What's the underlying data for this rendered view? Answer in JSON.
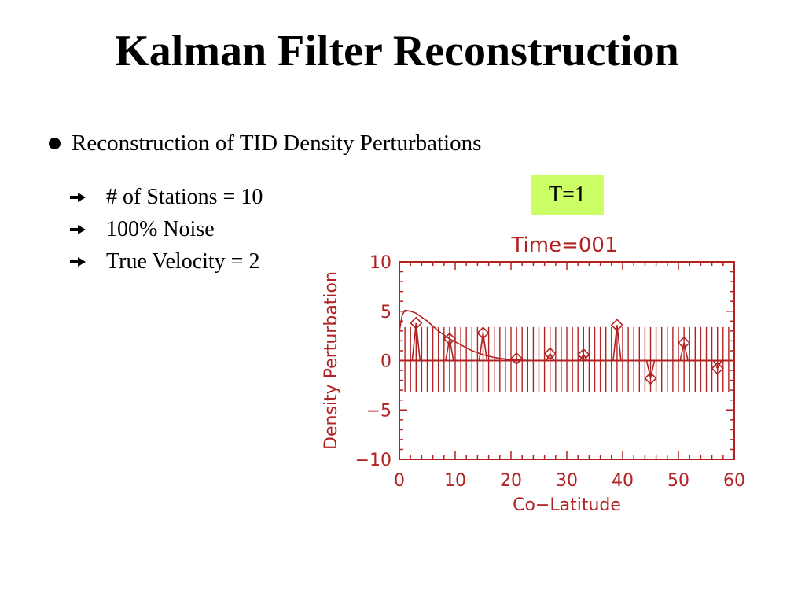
{
  "slide": {
    "title": "Kalman Filter Reconstruction",
    "main_bullet": "Reconstruction of TID Density Perturbations",
    "sub_bullets": [
      "# of Stations = 10",
      "100% Noise",
      "True Velocity = 2"
    ],
    "badge": "T=1"
  },
  "colors": {
    "plot": "#b22222",
    "badge_bg": "#ccff66"
  },
  "chart_data": {
    "type": "line",
    "title": "Time=001",
    "xlabel": "Co−Latitude",
    "ylabel": "Density Perturbation",
    "xlim": [
      0,
      60
    ],
    "ylim": [
      -10,
      10
    ],
    "x_ticks": [
      0,
      10,
      20,
      30,
      40,
      50,
      60
    ],
    "y_ticks": [
      10,
      5,
      0,
      -5,
      -10
    ],
    "x_tick_labels": [
      "0",
      "10",
      "20",
      "30",
      "40",
      "50",
      "60"
    ],
    "y_tick_labels": [
      "10",
      "5",
      "0",
      "−5",
      "−10"
    ],
    "curve": {
      "x": [
        0,
        0.5,
        1,
        2,
        3,
        4,
        5,
        6,
        7,
        8,
        9,
        10,
        11,
        12,
        13,
        14,
        15,
        16,
        17,
        18,
        19,
        20,
        21,
        22,
        23,
        24,
        25,
        30,
        35,
        40,
        45,
        50,
        55,
        60
      ],
      "y": [
        3.0,
        4.6,
        5.1,
        5.0,
        4.8,
        4.4,
        4.0,
        3.5,
        3.0,
        2.6,
        2.2,
        1.9,
        1.6,
        1.3,
        1.0,
        0.8,
        0.6,
        0.45,
        0.32,
        0.22,
        0.15,
        0.1,
        0.06,
        0.04,
        0.02,
        0.01,
        0.0,
        0.0,
        0.0,
        0.0,
        0.0,
        0.0,
        0.0,
        0.0
      ]
    },
    "stations": {
      "x": [
        3,
        9,
        15,
        21,
        27,
        33,
        39,
        45,
        51,
        57
      ],
      "y": [
        3.8,
        2.2,
        2.8,
        0.2,
        0.7,
        0.6,
        3.6,
        -1.8,
        1.8,
        -0.8
      ]
    },
    "vline_band": [
      -3.2,
      3.4
    ],
    "vline_x": [
      0.0,
      1.0,
      2.0,
      3.0,
      4.0,
      5.0,
      6.0,
      7.0,
      8.0,
      9.0,
      10.0,
      11.0,
      12.0,
      13.0,
      14.0,
      15.0,
      16.0,
      17.0,
      18.0,
      19.0,
      20.0,
      21.0,
      22.0,
      23.0,
      24.0,
      25.0,
      26.0,
      27.0,
      28.0,
      29.0,
      30.0,
      31.0,
      32.0,
      33.0,
      34.0,
      35.0,
      36.0,
      37.0,
      38.0,
      39.0,
      40.0,
      41.0,
      42.0,
      43.0,
      44.0,
      45.0,
      46.0,
      47.0,
      48.0,
      49.0,
      50.0,
      51.0,
      52.0,
      53.0,
      54.0,
      55.0,
      56.0,
      57.0,
      58.0,
      59.0,
      60.0
    ]
  }
}
